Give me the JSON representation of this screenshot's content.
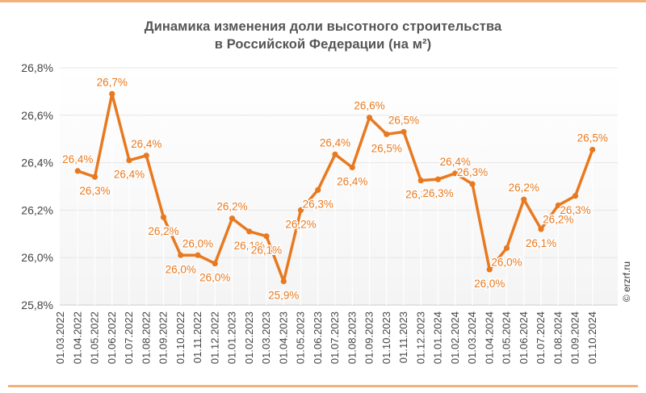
{
  "title_line1": "Динамика изменения доли высотного строительства",
  "title_line2": "в Российской Федерации (на м²)",
  "copyright": "© erzrf.ru",
  "colors": {
    "accent": "#E8791F",
    "rule": "#F2B27A",
    "grid": "#E6E6E6",
    "text": "#444444"
  },
  "chart_data": {
    "type": "line",
    "title": "Динамика изменения доли высотного строительства в Российской Федерации (на м²)",
    "ylim": [
      25.8,
      26.8
    ],
    "ytick_values": [
      25.8,
      26.0,
      26.2,
      26.4,
      26.6,
      26.8
    ],
    "ytick_labels": [
      "25,8%",
      "26,0%",
      "26,2%",
      "26,4%",
      "26,6%",
      "26,8%"
    ],
    "grid": "horizontal",
    "categories": [
      "01.03.2022",
      "01.04.2022",
      "01.05.2022",
      "01.06.2022",
      "01.07.2022",
      "01.08.2022",
      "01.09.2022",
      "01.10.2022",
      "01.11.2022",
      "01.12.2022",
      "01.01.2023",
      "01.02.2023",
      "01.03.2023",
      "01.04.2023",
      "01.05.2023",
      "01.06.2023",
      "01.07.2023",
      "01.08.2023",
      "01.09.2023",
      "01.10.2023",
      "01.11.2023",
      "01.12.2023",
      "01.01.2024",
      "01.02.2024",
      "01.03.2024",
      "01.04.2024",
      "01.05.2024",
      "01.06.2024",
      "01.07.2024",
      "01.08.2024",
      "01.09.2024",
      "01.10.2024"
    ],
    "values": [
      null,
      26.365,
      26.34,
      26.69,
      26.41,
      26.43,
      26.17,
      26.01,
      26.01,
      25.975,
      26.165,
      26.11,
      26.09,
      25.9,
      26.2,
      26.285,
      26.435,
      26.38,
      26.59,
      26.52,
      26.53,
      26.325,
      26.33,
      26.355,
      26.31,
      25.95,
      26.04,
      26.245,
      26.12,
      26.22,
      26.26,
      26.455
    ],
    "data_labels": [
      "",
      "26,4%",
      "26,3%",
      "26,7%",
      "26,4%",
      "26,4%",
      "26,2%",
      "26,0%",
      "26,0%",
      "26,0%",
      "26,2%",
      "26,1%",
      "26,1%",
      "25,9%",
      "26,2%",
      "26,3%",
      "26,4%",
      "26,4%",
      "26,6%",
      "26,5%",
      "26,5%",
      "26,3%",
      "26,3%",
      "26,4%",
      "26,3%",
      "26,0%",
      "26,0%",
      "26,2%",
      "26,1%",
      "26,2%",
      "26,3%",
      "26,5%"
    ],
    "label_positions": [
      "",
      "above",
      "below",
      "above",
      "below",
      "above",
      "below",
      "below",
      "above",
      "below",
      "above",
      "below",
      "below",
      "below",
      "below",
      "below",
      "above",
      "below",
      "above",
      "below",
      "above",
      "below",
      "below",
      "above",
      "above",
      "below",
      "below",
      "above",
      "below",
      "below",
      "below",
      "above"
    ]
  }
}
